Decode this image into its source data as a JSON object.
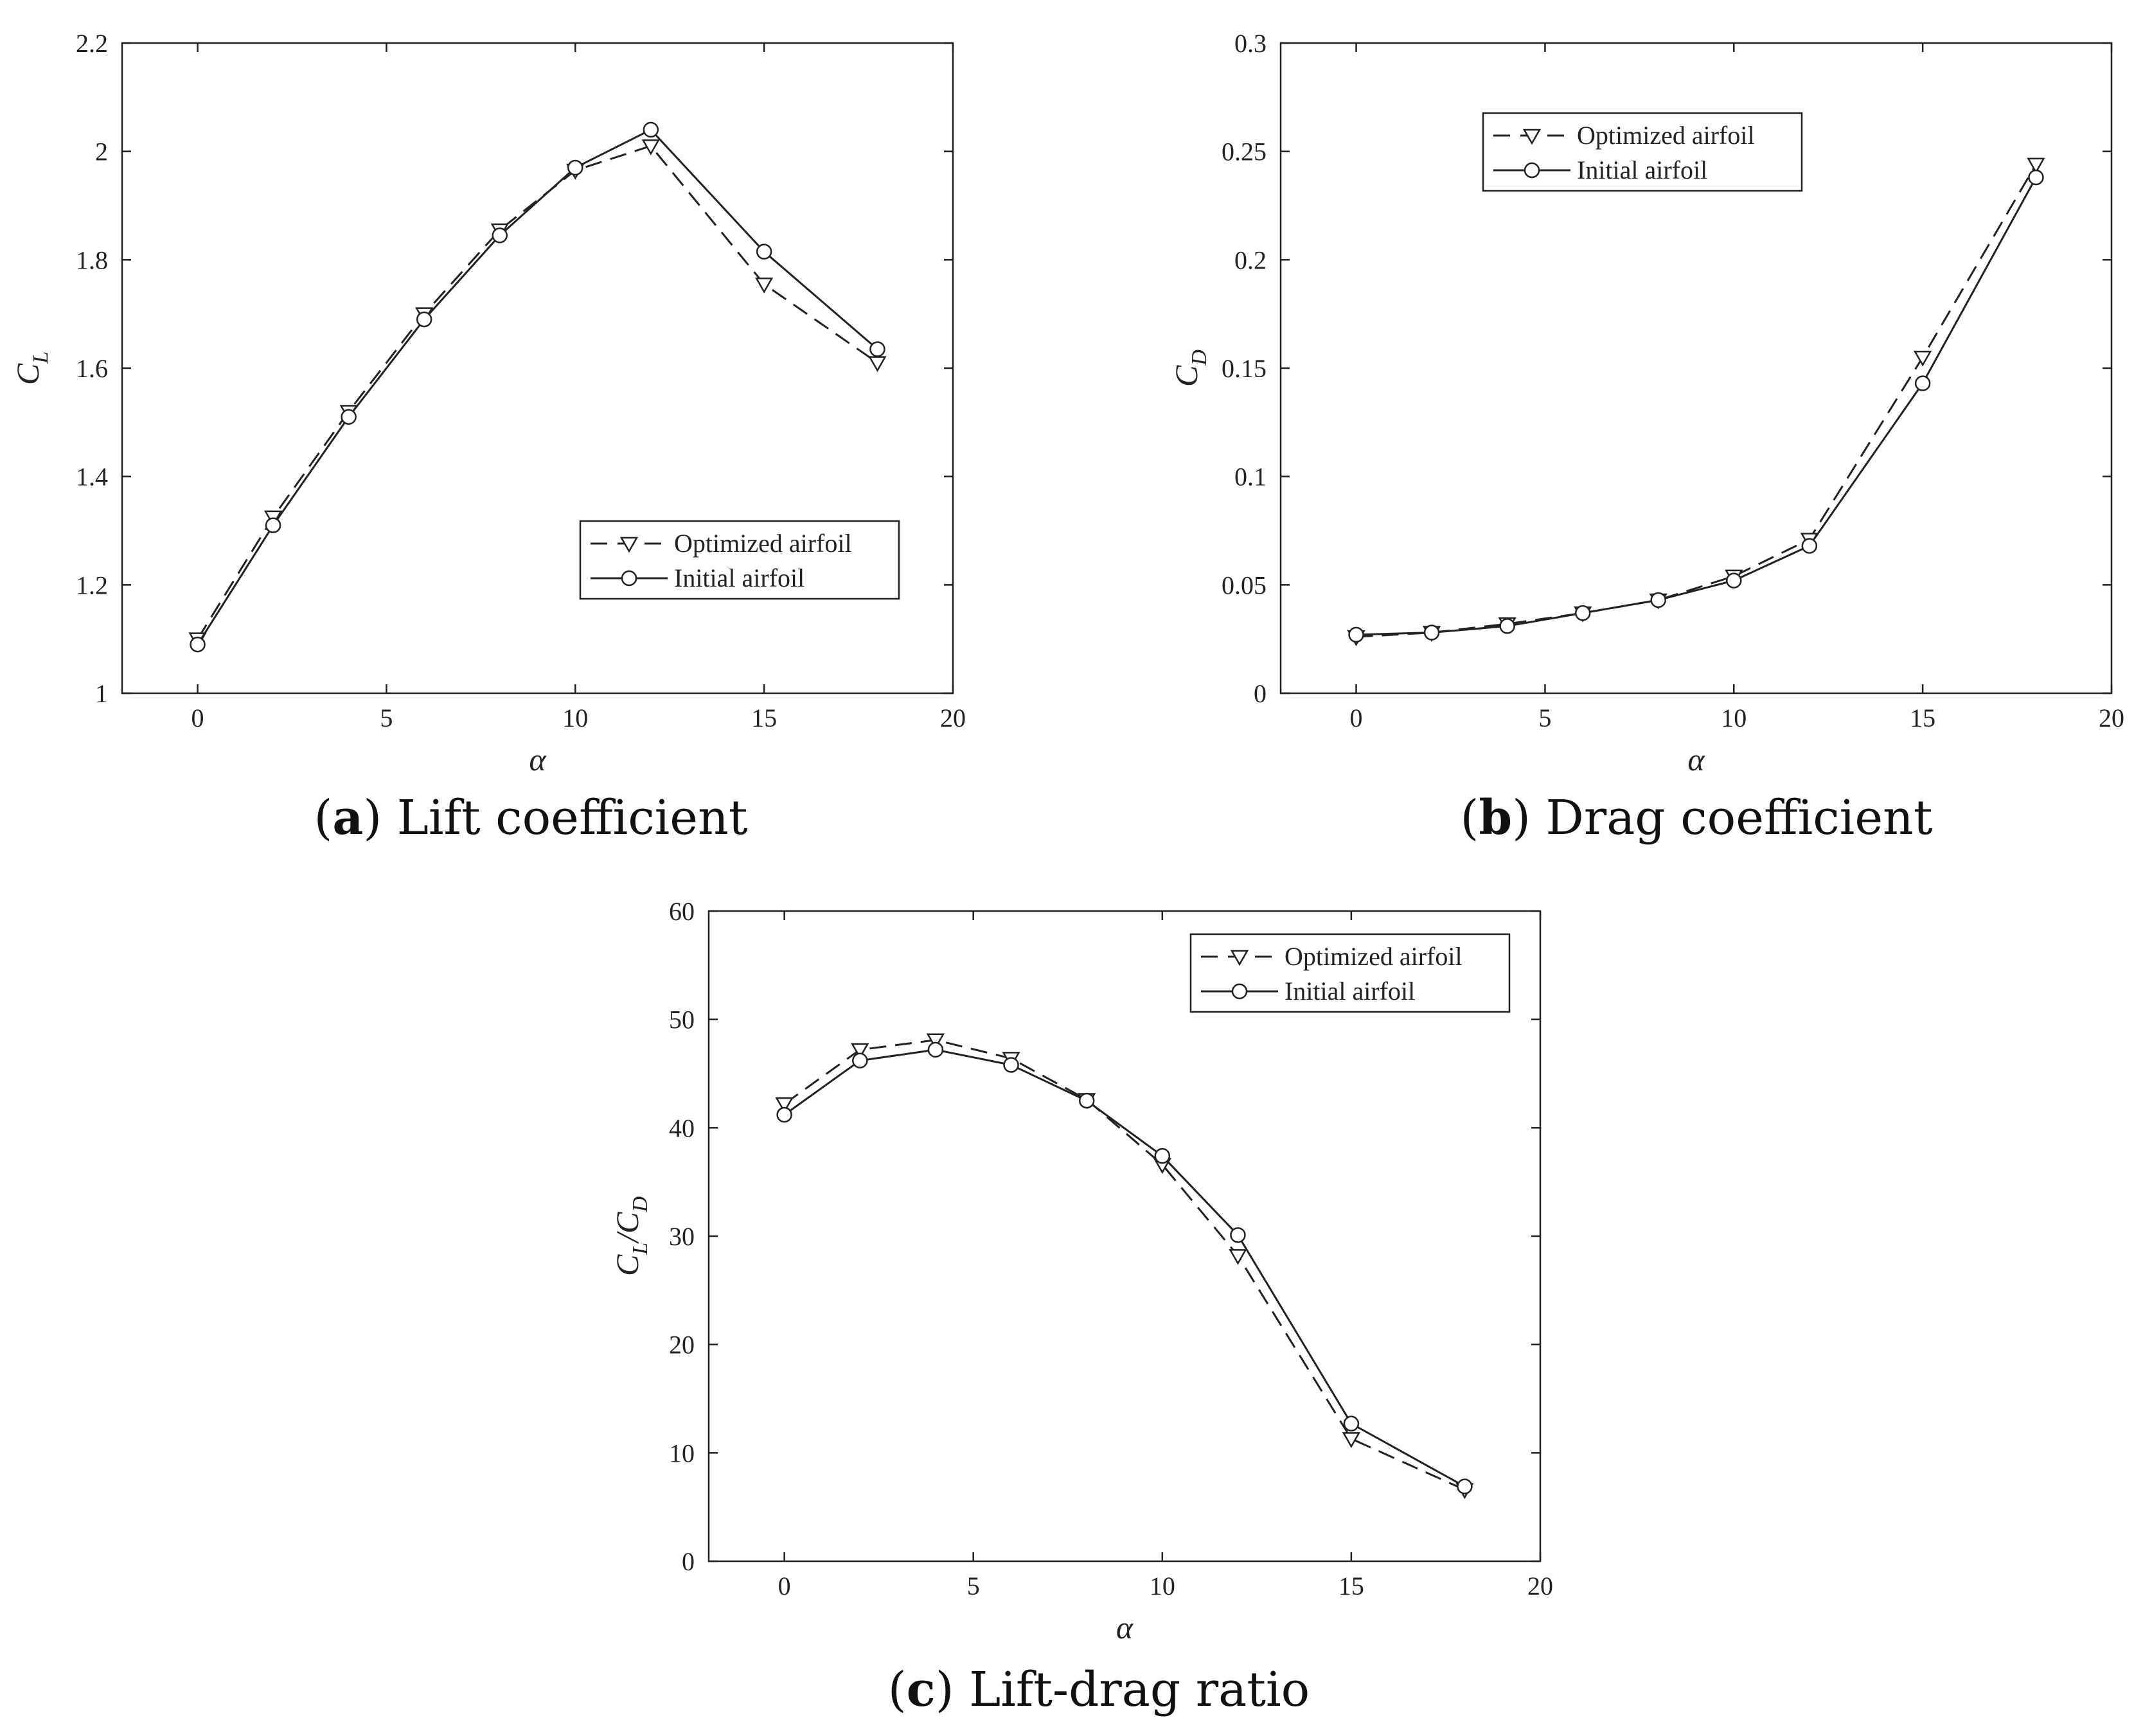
{
  "chart_data": [
    {
      "type": "line",
      "label": "a",
      "caption": "Lift coefficient",
      "xlabel": "α",
      "ylabel": {
        "main": "C",
        "sub": "L"
      },
      "xlim": [
        -2,
        20
      ],
      "ylim": [
        1,
        2.2
      ],
      "xticks": [
        0,
        5,
        10,
        15,
        20
      ],
      "yticks": [
        1,
        1.2,
        1.4,
        1.6,
        1.8,
        2,
        2.2
      ],
      "ytick_labels": [
        "1",
        "1.2",
        "1.4",
        "1.6",
        "1.8",
        "2",
        "2.2"
      ],
      "legend_position": "bottom-right",
      "x": [
        0,
        2,
        4,
        6,
        8,
        10,
        12,
        15,
        18
      ],
      "series": [
        {
          "name": "Optimized airfoil",
          "style": "dashed",
          "marker": "triangle-down",
          "values": [
            1.1,
            1.325,
            1.52,
            1.7,
            1.855,
            1.965,
            2.01,
            1.755,
            1.61
          ]
        },
        {
          "name": "Initial airfoil",
          "style": "solid",
          "marker": "circle",
          "values": [
            1.09,
            1.31,
            1.51,
            1.69,
            1.845,
            1.97,
            2.04,
            1.815,
            1.635
          ]
        }
      ]
    },
    {
      "type": "line",
      "label": "b",
      "caption": "Drag coefficient",
      "xlabel": "α",
      "ylabel": {
        "main": "C",
        "sub": "D"
      },
      "xlim": [
        -2,
        20
      ],
      "ylim": [
        0,
        0.3
      ],
      "xticks": [
        0,
        5,
        10,
        15,
        20
      ],
      "yticks": [
        0,
        0.05,
        0.1,
        0.15,
        0.2,
        0.25,
        0.3
      ],
      "ytick_labels": [
        "0",
        "0.05",
        "0.1",
        "0.15",
        "0.2",
        "0.25",
        "0.3"
      ],
      "legend_position": "top-left",
      "x": [
        0,
        2,
        4,
        6,
        8,
        10,
        12,
        15,
        18
      ],
      "series": [
        {
          "name": "Optimized airfoil",
          "style": "dashed",
          "marker": "triangle-down",
          "values": [
            0.026,
            0.028,
            0.032,
            0.037,
            0.043,
            0.054,
            0.071,
            0.155,
            0.244
          ]
        },
        {
          "name": "Initial airfoil",
          "style": "solid",
          "marker": "circle",
          "values": [
            0.027,
            0.028,
            0.031,
            0.037,
            0.043,
            0.052,
            0.068,
            0.143,
            0.238
          ]
        }
      ]
    },
    {
      "type": "line",
      "label": "c",
      "caption": "Lift-drag ratio",
      "xlabel": "α",
      "ylabel": {
        "main": "C",
        "sub": "L",
        "main2": "/C",
        "sub2": "D"
      },
      "xlim": [
        -2,
        20
      ],
      "ylim": [
        0,
        60
      ],
      "xticks": [
        0,
        5,
        10,
        15,
        20
      ],
      "yticks": [
        0,
        10,
        20,
        30,
        40,
        50,
        60
      ],
      "ytick_labels": [
        "0",
        "10",
        "20",
        "30",
        "40",
        "50",
        "60"
      ],
      "legend_position": "top-right",
      "x": [
        0,
        2,
        4,
        6,
        8,
        10,
        12,
        15,
        18
      ],
      "series": [
        {
          "name": "Optimized airfoil",
          "style": "dashed",
          "marker": "triangle-down",
          "values": [
            42.2,
            47.2,
            48.1,
            46.4,
            42.6,
            36.6,
            28.2,
            11.3,
            6.6
          ]
        },
        {
          "name": "Initial airfoil",
          "style": "solid",
          "marker": "circle",
          "values": [
            41.2,
            46.2,
            47.2,
            45.8,
            42.5,
            37.4,
            30.1,
            12.7,
            6.9
          ]
        }
      ]
    }
  ]
}
